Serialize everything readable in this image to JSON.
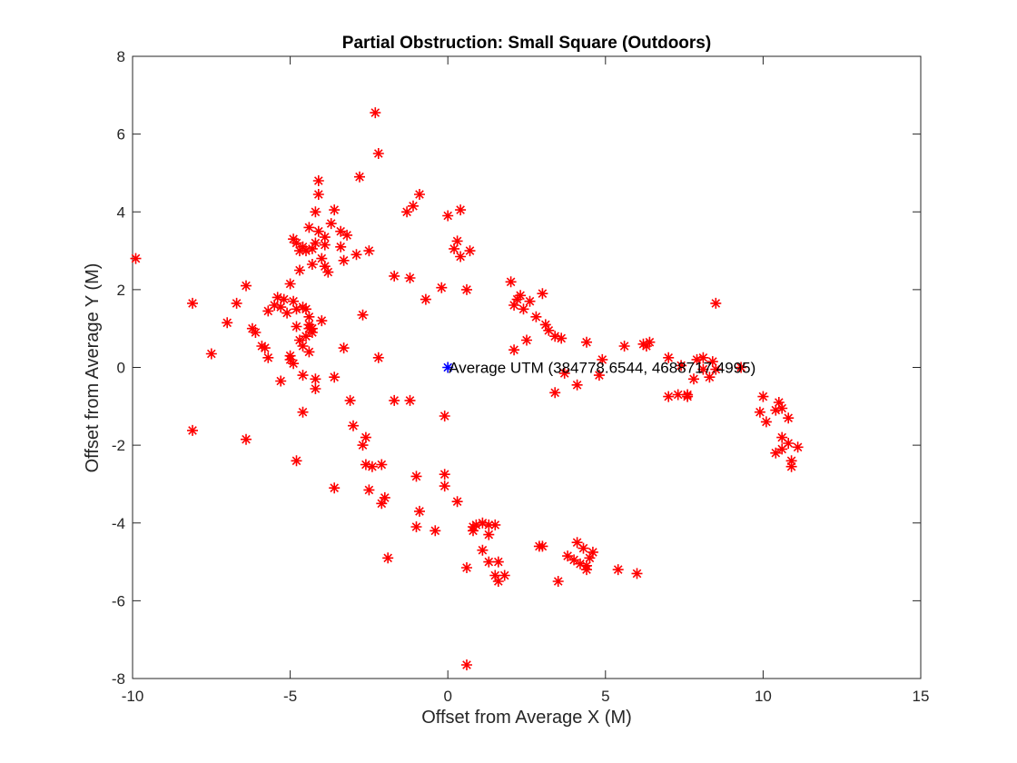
{
  "chart_data": {
    "type": "scatter",
    "title": "Partial Obstruction: Small Square (Outdoors)",
    "xlabel": "Offset from Average X (M)",
    "ylabel": "Offset from Average Y (M)",
    "xlim": [
      -10,
      15
    ],
    "ylim": [
      -8,
      8
    ],
    "xticks": [
      "-10",
      "-5",
      "0",
      "5",
      "10",
      "15"
    ],
    "yticks": [
      "8",
      "6",
      "4",
      "2",
      "0",
      "-2",
      "-4",
      "-6",
      "-8"
    ],
    "grid": false,
    "series": [
      {
        "marker": "asterisk",
        "color": "#ff0000",
        "points": [
          [
            -9.9,
            2.8
          ],
          [
            -8.1,
            1.65
          ],
          [
            -8.1,
            -1.62
          ],
          [
            -7.5,
            0.35
          ],
          [
            -7.0,
            1.15
          ],
          [
            -6.7,
            1.65
          ],
          [
            -6.4,
            2.1
          ],
          [
            -6.4,
            -1.85
          ],
          [
            -6.2,
            1.0
          ],
          [
            -6.1,
            0.9
          ],
          [
            -5.9,
            0.55
          ],
          [
            -5.8,
            0.5
          ],
          [
            -5.7,
            0.25
          ],
          [
            -5.7,
            1.45
          ],
          [
            -5.5,
            1.6
          ],
          [
            -5.4,
            1.8
          ],
          [
            -5.3,
            1.55
          ],
          [
            -5.3,
            -0.35
          ],
          [
            -5.2,
            1.75
          ],
          [
            -5.1,
            1.4
          ],
          [
            -5.0,
            2.15
          ],
          [
            -5.0,
            0.3
          ],
          [
            -5.0,
            0.2
          ],
          [
            -4.9,
            0.1
          ],
          [
            -4.9,
            3.3
          ],
          [
            -4.9,
            1.7
          ],
          [
            -4.8,
            3.2
          ],
          [
            -4.8,
            1.5
          ],
          [
            -4.8,
            1.05
          ],
          [
            -4.8,
            -2.4
          ],
          [
            -4.7,
            2.5
          ],
          [
            -4.7,
            3.0
          ],
          [
            -4.7,
            0.7
          ],
          [
            -4.6,
            3.1
          ],
          [
            -4.6,
            0.55
          ],
          [
            -4.6,
            1.55
          ],
          [
            -4.6,
            -1.15
          ],
          [
            -4.6,
            -0.2
          ],
          [
            -4.5,
            0.8
          ],
          [
            -4.5,
            3.0
          ],
          [
            -4.5,
            1.5
          ],
          [
            -4.4,
            1.3
          ],
          [
            -4.4,
            1.1
          ],
          [
            -4.4,
            1.0
          ],
          [
            -4.4,
            0.4
          ],
          [
            -4.4,
            3.6
          ],
          [
            -4.3,
            3.05
          ],
          [
            -4.3,
            2.65
          ],
          [
            -4.3,
            1.0
          ],
          [
            -4.3,
            0.9
          ],
          [
            -4.2,
            4.0
          ],
          [
            -4.2,
            3.2
          ],
          [
            -4.2,
            -0.3
          ],
          [
            -4.2,
            -0.55
          ],
          [
            -4.1,
            4.45
          ],
          [
            -4.1,
            4.8
          ],
          [
            -4.1,
            3.5
          ],
          [
            -4.0,
            2.8
          ],
          [
            -4.0,
            1.2
          ],
          [
            -3.9,
            3.35
          ],
          [
            -3.9,
            3.15
          ],
          [
            -3.9,
            2.6
          ],
          [
            -3.8,
            2.45
          ],
          [
            -3.7,
            3.7
          ],
          [
            -3.6,
            4.05
          ],
          [
            -3.6,
            -3.1
          ],
          [
            -3.6,
            -0.25
          ],
          [
            -3.4,
            3.5
          ],
          [
            -3.4,
            3.1
          ],
          [
            -3.3,
            2.75
          ],
          [
            -3.3,
            0.5
          ],
          [
            -3.2,
            3.4
          ],
          [
            -3.1,
            -0.85
          ],
          [
            -3.0,
            -1.5
          ],
          [
            -2.9,
            2.9
          ],
          [
            -2.8,
            4.9
          ],
          [
            -2.7,
            1.35
          ],
          [
            -2.7,
            -2.0
          ],
          [
            -2.6,
            -1.8
          ],
          [
            -2.6,
            -2.5
          ],
          [
            -2.5,
            -3.15
          ],
          [
            -2.5,
            3.0
          ],
          [
            -2.4,
            -2.55
          ],
          [
            -2.3,
            6.55
          ],
          [
            -2.2,
            5.5
          ],
          [
            -2.2,
            0.25
          ],
          [
            -2.1,
            -2.5
          ],
          [
            -2.1,
            -3.5
          ],
          [
            -2.0,
            -3.35
          ],
          [
            -1.9,
            -4.9
          ],
          [
            -1.7,
            2.35
          ],
          [
            -1.7,
            -0.85
          ],
          [
            -1.3,
            4.0
          ],
          [
            -1.2,
            2.3
          ],
          [
            -1.2,
            -0.85
          ],
          [
            -1.1,
            4.15
          ],
          [
            -1.0,
            -2.8
          ],
          [
            -1.0,
            -4.1
          ],
          [
            -0.9,
            4.45
          ],
          [
            -0.9,
            -3.7
          ],
          [
            -0.7,
            1.75
          ],
          [
            -0.4,
            -4.2
          ],
          [
            -0.2,
            2.05
          ],
          [
            -0.1,
            -1.25
          ],
          [
            -0.1,
            -2.75
          ],
          [
            -0.1,
            -3.05
          ],
          [
            0.0,
            3.9
          ],
          [
            0.2,
            3.05
          ],
          [
            0.3,
            3.25
          ],
          [
            0.3,
            -3.45
          ],
          [
            0.4,
            4.05
          ],
          [
            0.4,
            2.85
          ],
          [
            0.6,
            -5.15
          ],
          [
            0.6,
            -7.65
          ],
          [
            0.6,
            2.0
          ],
          [
            0.7,
            3.0
          ],
          [
            0.8,
            -4.2
          ],
          [
            0.8,
            -4.1
          ],
          [
            0.9,
            -4.05
          ],
          [
            1.1,
            -4.0
          ],
          [
            1.1,
            -4.7
          ],
          [
            1.3,
            -4.05
          ],
          [
            1.3,
            -5.0
          ],
          [
            1.3,
            -4.3
          ],
          [
            1.5,
            -4.05
          ],
          [
            1.5,
            -5.35
          ],
          [
            1.6,
            -5.5
          ],
          [
            1.6,
            -5.0
          ],
          [
            1.8,
            -5.35
          ],
          [
            2.0,
            2.2
          ],
          [
            2.1,
            0.45
          ],
          [
            2.1,
            1.6
          ],
          [
            2.2,
            1.75
          ],
          [
            2.3,
            1.85
          ],
          [
            2.4,
            1.5
          ],
          [
            2.5,
            0.7
          ],
          [
            2.6,
            1.7
          ],
          [
            2.8,
            1.3
          ],
          [
            2.9,
            -4.6
          ],
          [
            3.0,
            1.9
          ],
          [
            3.0,
            -4.6
          ],
          [
            3.1,
            1.1
          ],
          [
            3.2,
            0.95
          ],
          [
            3.4,
            -0.65
          ],
          [
            3.4,
            0.8
          ],
          [
            3.5,
            -5.5
          ],
          [
            3.6,
            0.75
          ],
          [
            3.7,
            -0.15
          ],
          [
            3.8,
            -4.85
          ],
          [
            4.0,
            -4.95
          ],
          [
            4.1,
            -4.5
          ],
          [
            4.1,
            -0.45
          ],
          [
            4.2,
            -5.05
          ],
          [
            4.3,
            -4.65
          ],
          [
            4.4,
            0.65
          ],
          [
            4.4,
            -5.1
          ],
          [
            4.4,
            -5.2
          ],
          [
            4.5,
            -4.9
          ],
          [
            4.6,
            -4.75
          ],
          [
            4.8,
            -0.2
          ],
          [
            4.9,
            0.2
          ],
          [
            5.4,
            -5.2
          ],
          [
            5.6,
            0.55
          ],
          [
            6.0,
            -5.3
          ],
          [
            6.2,
            0.6
          ],
          [
            6.3,
            0.55
          ],
          [
            6.4,
            0.65
          ],
          [
            7.0,
            0.25
          ],
          [
            7.0,
            -0.75
          ],
          [
            7.3,
            -0.7
          ],
          [
            7.4,
            0.05
          ],
          [
            7.6,
            -0.7
          ],
          [
            7.6,
            -0.75
          ],
          [
            7.8,
            -0.3
          ],
          [
            7.9,
            0.2
          ],
          [
            8.1,
            0.25
          ],
          [
            8.1,
            -0.05
          ],
          [
            8.3,
            -0.25
          ],
          [
            8.4,
            0.15
          ],
          [
            8.5,
            1.65
          ],
          [
            8.5,
            -0.05
          ],
          [
            9.3,
            0.0
          ],
          [
            9.9,
            -1.15
          ],
          [
            10.0,
            -0.75
          ],
          [
            10.1,
            -1.4
          ],
          [
            10.4,
            -1.1
          ],
          [
            10.4,
            -2.2
          ],
          [
            10.5,
            -0.9
          ],
          [
            10.6,
            -1.05
          ],
          [
            10.6,
            -1.8
          ],
          [
            10.6,
            -2.1
          ],
          [
            10.8,
            -1.3
          ],
          [
            10.8,
            -1.95
          ],
          [
            10.9,
            -2.4
          ],
          [
            10.9,
            -2.55
          ],
          [
            11.1,
            -2.05
          ]
        ]
      },
      {
        "marker": "asterisk",
        "color": "#0000ff",
        "points": [
          [
            0,
            0
          ]
        ]
      }
    ],
    "annotations": [
      {
        "text": "Average UTM (384778.6544, 4688717.4995)",
        "x": 0,
        "y": 0
      }
    ]
  }
}
